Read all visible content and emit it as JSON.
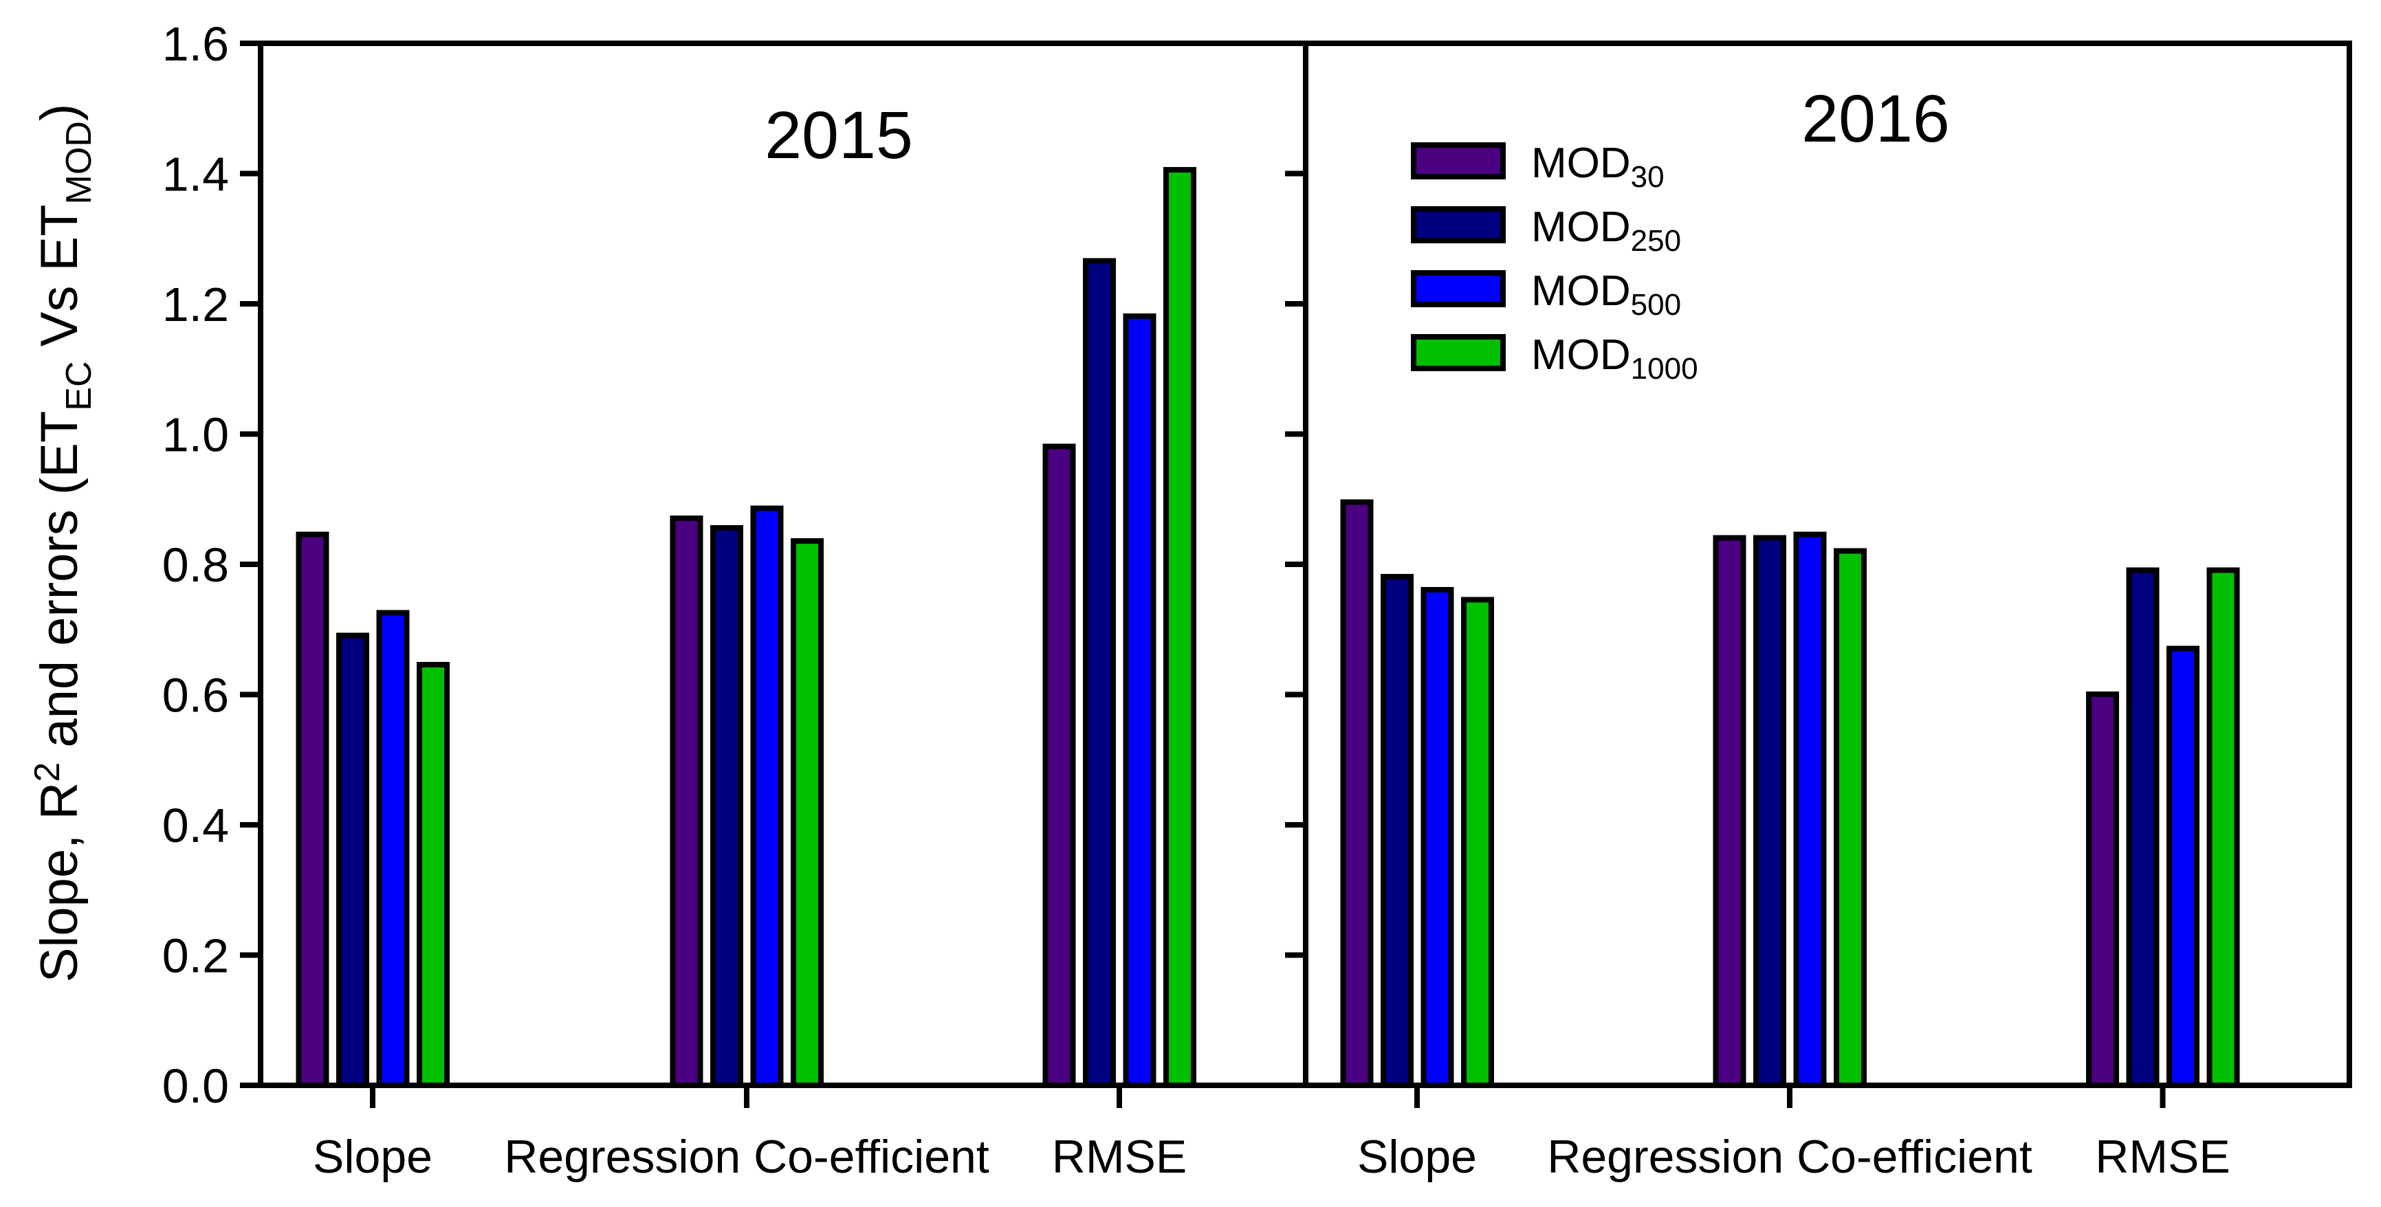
{
  "figure": {
    "background": "#ffffff",
    "y_axis": {
      "label": "Slope, R2 and errors (ETEC Vs ETMOD)",
      "label_parts": [
        {
          "t": "Slope, R"
        },
        {
          "t": "2",
          "s": "sup"
        },
        {
          "t": " and errors (ET"
        },
        {
          "t": "EC",
          "s": "sub"
        },
        {
          "t": " Vs ET"
        },
        {
          "t": "MOD",
          "s": "sub"
        },
        {
          "t": ")"
        }
      ],
      "tick_labels": [
        "0.0",
        "0.2",
        "0.4",
        "0.6",
        "0.8",
        "1.0",
        "1.2",
        "1.4",
        "1.6"
      ],
      "min": 0.0,
      "max": 1.6,
      "tick_step": 0.2
    },
    "colors": {
      "mod30": "#4B0082",
      "mod250": "#000080",
      "mod500": "#0000FF",
      "mod1000": "#00BF00",
      "axis": "#000000"
    }
  },
  "chart_data": [
    {
      "type": "bar",
      "title": "2015",
      "categories": [
        "Slope",
        "Regression Co-efficient",
        "RMSE"
      ],
      "ylim": [
        0.0,
        1.6
      ],
      "grid": false,
      "series": [
        {
          "name": "MOD30",
          "legend": {
            "main": "MOD",
            "sub": "30"
          },
          "color": "#4B0082",
          "values": [
            0.85,
            0.875,
            0.985
          ]
        },
        {
          "name": "MOD250",
          "legend": {
            "main": "MOD",
            "sub": "250"
          },
          "color": "#000080",
          "values": [
            0.695,
            0.86,
            1.27
          ]
        },
        {
          "name": "MOD500",
          "legend": {
            "main": "MOD",
            "sub": "500"
          },
          "color": "#0000FF",
          "values": [
            0.73,
            0.89,
            1.185
          ]
        },
        {
          "name": "MOD1000",
          "legend": {
            "main": "MOD",
            "sub": "1000"
          },
          "color": "#00BF00",
          "values": [
            0.65,
            0.84,
            1.41
          ]
        }
      ]
    },
    {
      "type": "bar",
      "title": "2016",
      "categories": [
        "Slope",
        "Regression Co-efficient",
        "RMSE"
      ],
      "ylim": [
        0.0,
        1.6
      ],
      "grid": false,
      "series": [
        {
          "name": "MOD30",
          "legend": {
            "main": "MOD",
            "sub": "30"
          },
          "color": "#4B0082",
          "values": [
            0.9,
            0.845,
            0.605
          ]
        },
        {
          "name": "MOD250",
          "legend": {
            "main": "MOD",
            "sub": "250"
          },
          "color": "#000080",
          "values": [
            0.785,
            0.845,
            0.795
          ]
        },
        {
          "name": "MOD500",
          "legend": {
            "main": "MOD",
            "sub": "500"
          },
          "color": "#0000FF",
          "values": [
            0.765,
            0.85,
            0.675
          ]
        },
        {
          "name": "MOD1000",
          "legend": {
            "main": "MOD",
            "sub": "1000"
          },
          "color": "#00BF00",
          "values": [
            0.75,
            0.825,
            0.795
          ]
        }
      ]
    }
  ],
  "legend": {
    "position": "top-left-of-right-panel",
    "entries": [
      {
        "label": "MOD30",
        "color": "#4B0082"
      },
      {
        "label": "MOD250",
        "color": "#000080"
      },
      {
        "label": "MOD500",
        "color": "#0000FF"
      },
      {
        "label": "MOD1000",
        "color": "#00BF00"
      }
    ]
  }
}
